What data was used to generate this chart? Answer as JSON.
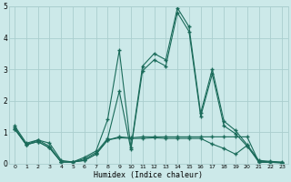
{
  "xlabel": "Humidex (Indice chaleur)",
  "background_color": "#cce9e9",
  "grid_color": "#aacece",
  "line_color": "#1a6b5a",
  "x": [
    0,
    1,
    2,
    3,
    4,
    5,
    6,
    7,
    8,
    9,
    10,
    11,
    12,
    13,
    14,
    15,
    16,
    17,
    18,
    19,
    20,
    21,
    22,
    23
  ],
  "series1": [
    1.2,
    0.65,
    0.75,
    0.65,
    0.1,
    0.05,
    0.2,
    0.4,
    1.4,
    3.6,
    0.5,
    3.1,
    3.5,
    3.3,
    4.95,
    4.35,
    1.6,
    3.0,
    1.35,
    1.05,
    0.6,
    0.1,
    0.07,
    0.05
  ],
  "series2": [
    1.15,
    0.6,
    0.75,
    0.55,
    0.05,
    0.05,
    0.15,
    0.35,
    0.8,
    2.3,
    0.45,
    2.95,
    3.3,
    3.1,
    4.8,
    4.2,
    1.5,
    2.85,
    1.2,
    0.95,
    0.55,
    0.08,
    0.05,
    0.03
  ],
  "series3": [
    1.1,
    0.6,
    0.7,
    0.5,
    0.05,
    0.05,
    0.1,
    0.3,
    0.75,
    0.85,
    0.82,
    0.85,
    0.85,
    0.85,
    0.85,
    0.85,
    0.85,
    0.85,
    0.85,
    0.85,
    0.85,
    0.05,
    0.04,
    0.03
  ],
  "series4": [
    1.1,
    0.6,
    0.7,
    0.5,
    0.05,
    0.05,
    0.1,
    0.3,
    0.75,
    0.82,
    0.8,
    0.8,
    0.82,
    0.8,
    0.8,
    0.8,
    0.8,
    0.62,
    0.48,
    0.3,
    0.58,
    0.04,
    0.04,
    0.02
  ],
  "ylim": [
    0,
    5
  ],
  "xlim": [
    -0.5,
    23.5
  ],
  "figsize": [
    3.2,
    2.0
  ],
  "dpi": 100
}
